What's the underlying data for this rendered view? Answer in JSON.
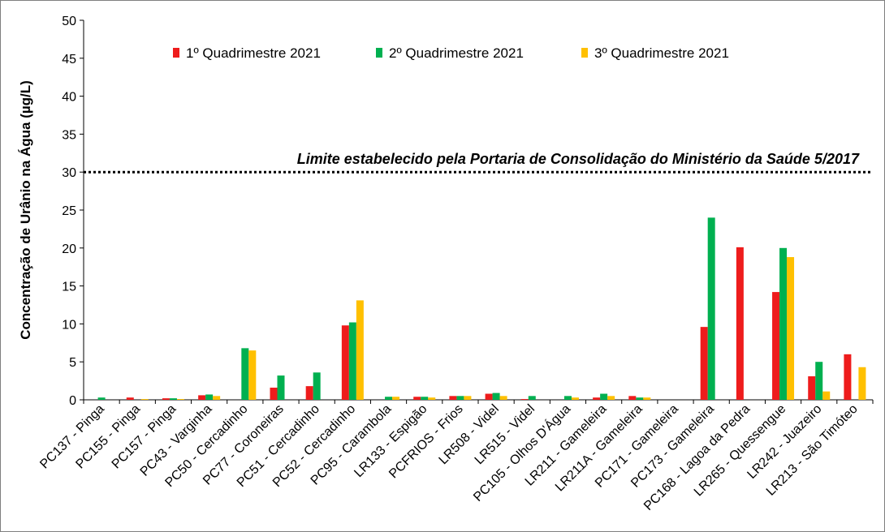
{
  "chart_data": {
    "type": "bar",
    "title": "",
    "xlabel": "",
    "ylabel": "Concentração de Urânio na Água (µg/L)",
    "ylim": [
      0,
      50
    ],
    "yticks": [
      0,
      5,
      10,
      15,
      20,
      25,
      30,
      35,
      40,
      45,
      50
    ],
    "grid": false,
    "legend_position": "top",
    "categories": [
      "PC137 - Pinga",
      "PC155 - Pinga",
      "PC157 - Pinga",
      "PC43 - Varginha",
      "PC50 - Cercadinho",
      "PC77 - Coroneiras",
      "PC51 - Cercadinho",
      "PC52 - Cercadinho",
      "PC95 - Carambola",
      "LR133 - Espigão",
      "PCFRIOS - Frios",
      "LR508 - Videl",
      "LR515 - Videl",
      "PC105 - Olhos D'Água",
      "LR211 - Gameleira",
      "LR211A - Gameleira",
      "PC171 - Gameleira",
      "PC173 - Gameleira",
      "PC168 - Lagoa da Pedra",
      "LR265 - Quessengue",
      "LR242 - Juazeiro",
      "LR213 - São Timóteo"
    ],
    "series": [
      {
        "name": "1º Quadrimestre 2021",
        "color": "#ee1c1c",
        "values": [
          0,
          0.3,
          0.2,
          0.6,
          0,
          1.6,
          1.8,
          9.8,
          0,
          0.4,
          0.5,
          0.8,
          0.1,
          0,
          0.3,
          0.5,
          0,
          9.6,
          20.1,
          14.2,
          3.1,
          6.0
        ]
      },
      {
        "name": "2º Quadrimestre 2021",
        "color": "#00b050",
        "values": [
          0.3,
          0,
          0.2,
          0.7,
          6.8,
          3.2,
          3.6,
          10.2,
          0.4,
          0.4,
          0.5,
          0.9,
          0.5,
          0.5,
          0.8,
          0.3,
          0,
          24.0,
          0,
          20.0,
          5.0,
          0
        ]
      },
      {
        "name": "3º Quadrimestre 2021",
        "color": "#ffc000",
        "values": [
          0,
          0.1,
          0.1,
          0.5,
          6.5,
          0,
          0,
          13.1,
          0.4,
          0.3,
          0.5,
          0.5,
          0,
          0.3,
          0.5,
          0.3,
          0,
          0,
          0,
          18.8,
          1.1,
          4.3
        ]
      }
    ],
    "annotations": [
      {
        "text": "Limite estabelecido pela Portaria de Consolidação do Ministério da Saúde 5/2017",
        "y": 30,
        "style": "dotted line"
      }
    ]
  }
}
